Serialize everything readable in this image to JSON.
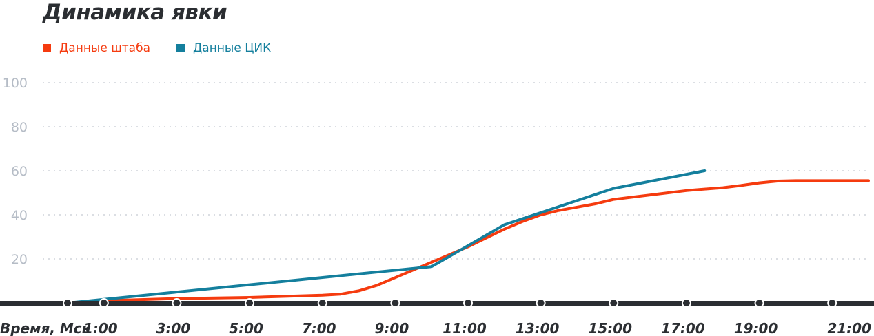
{
  "chart_data": {
    "type": "line",
    "title": "Динамика явки",
    "xlabel": "Время, Мск",
    "x_ticks": [
      "1:00",
      "3:00",
      "5:00",
      "7:00",
      "9:00",
      "11:00",
      "13:00",
      "15:00",
      "17:00",
      "19:00",
      "21:00"
    ],
    "xlim": [
      0,
      22
    ],
    "y_ticks": [
      20,
      40,
      60,
      80,
      100
    ],
    "ylim": [
      0,
      100
    ],
    "grid": true,
    "legend": "top-left",
    "series": [
      {
        "name": "Данные штаба",
        "color": "#f53b0f",
        "points": [
          [
            0,
            0
          ],
          [
            1,
            1
          ],
          [
            3,
            2
          ],
          [
            5,
            2.5
          ],
          [
            7,
            3.5
          ],
          [
            7.5,
            4
          ],
          [
            8,
            5.5
          ],
          [
            8.5,
            8
          ],
          [
            9,
            11.5
          ],
          [
            9.5,
            15
          ],
          [
            10,
            18.5
          ],
          [
            10.5,
            22
          ],
          [
            11,
            25.5
          ],
          [
            11.5,
            29.5
          ],
          [
            12,
            33.5
          ],
          [
            12.5,
            37
          ],
          [
            13,
            40
          ],
          [
            13.5,
            42
          ],
          [
            14,
            43.5
          ],
          [
            14.5,
            45
          ],
          [
            15,
            47
          ],
          [
            15.5,
            48
          ],
          [
            16,
            49
          ],
          [
            16.5,
            50
          ],
          [
            17,
            51
          ],
          [
            17.5,
            51.7
          ],
          [
            18,
            52.3
          ],
          [
            18.5,
            53.3
          ],
          [
            19,
            54.5
          ],
          [
            19.5,
            55.3
          ],
          [
            20,
            55.5
          ],
          [
            21,
            55.5
          ],
          [
            22,
            55.5
          ]
        ]
      },
      {
        "name": "Данные ЦИК",
        "color": "#147f9d",
        "points": [
          [
            0,
            0
          ],
          [
            10,
            16.5
          ],
          [
            12,
            35.5
          ],
          [
            15,
            52
          ],
          [
            17.5,
            60
          ]
        ]
      }
    ]
  }
}
